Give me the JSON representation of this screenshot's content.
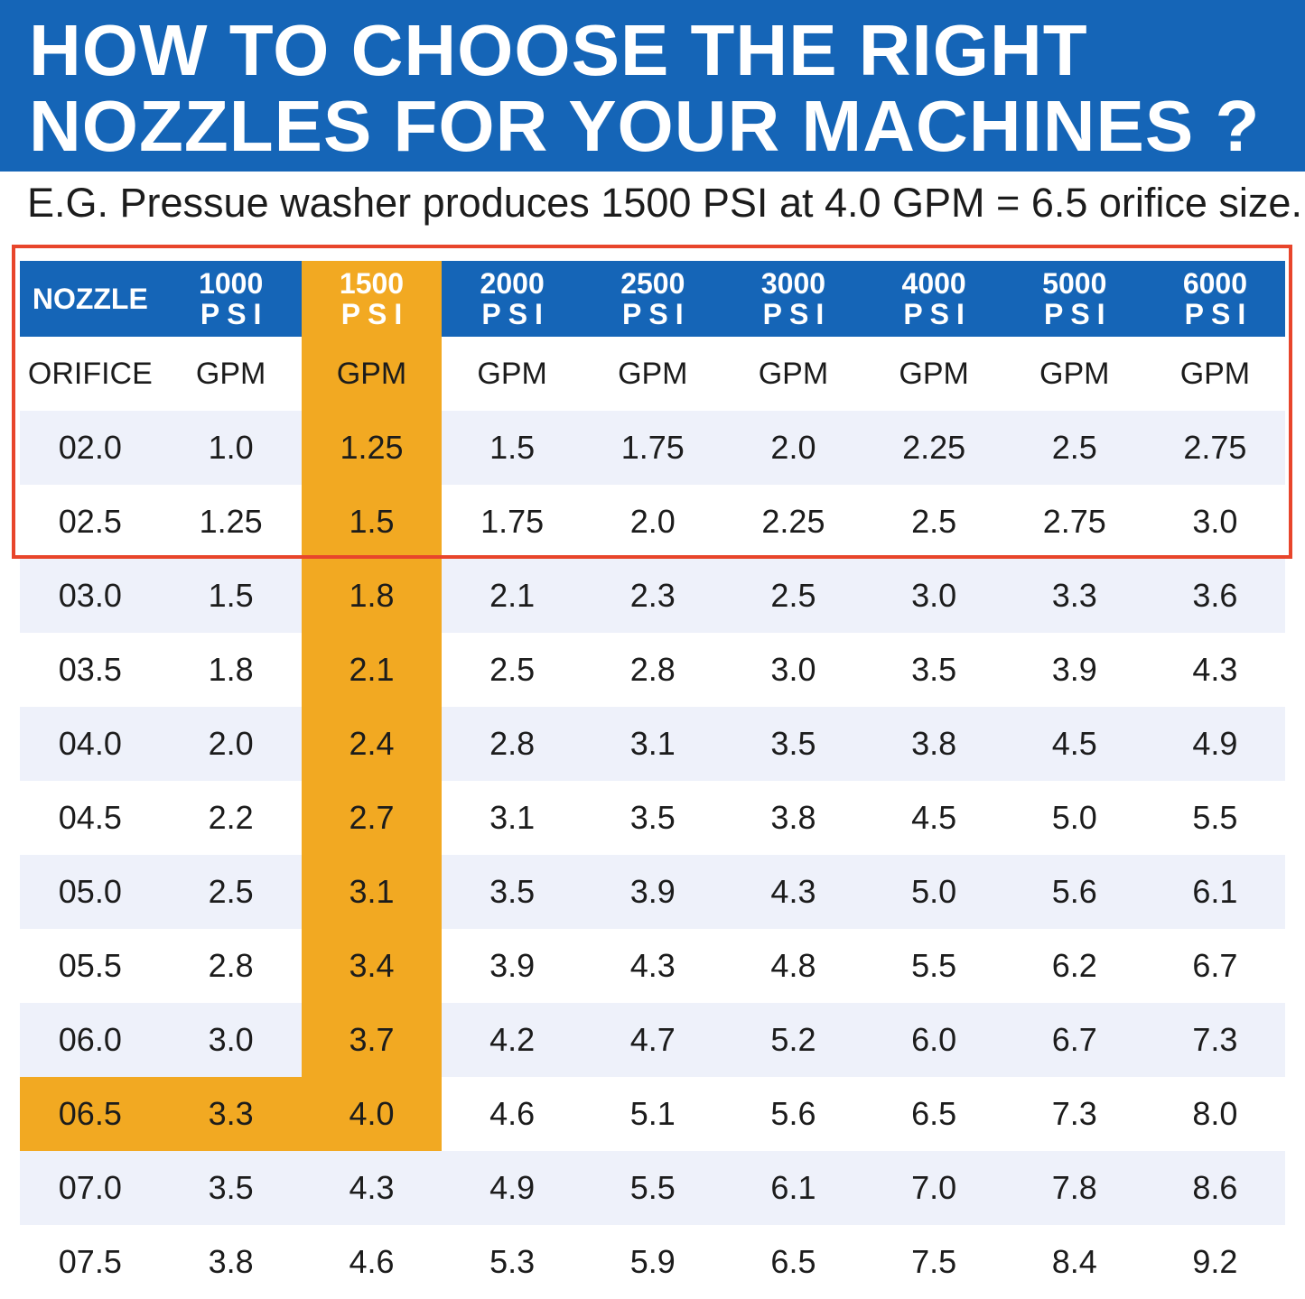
{
  "title": {
    "line1": "HOW TO CHOOSE THE RIGHT",
    "line2": "NOZZLES FOR YOUR MACHINES ?"
  },
  "subtitle": "E.G. Pressue washer produces 1500 PSI at 4.0 GPM = 6.5 orifice size.",
  "colors": {
    "banner": "#1565b7",
    "highlight": "#f2a922",
    "callout_border": "#e8452b",
    "alt_row": "#eef1fa"
  },
  "table": {
    "header_first": "NOZZLE",
    "pressures": [
      {
        "value": "1000",
        "unit": "PSI"
      },
      {
        "value": "1500",
        "unit": "PSI"
      },
      {
        "value": "2000",
        "unit": "PSI"
      },
      {
        "value": "2500",
        "unit": "PSI"
      },
      {
        "value": "3000",
        "unit": "PSI"
      },
      {
        "value": "4000",
        "unit": "PSI"
      },
      {
        "value": "5000",
        "unit": "PSI"
      },
      {
        "value": "6000",
        "unit": "PSI"
      }
    ],
    "units_first": "ORIFICE",
    "unit_label": "GPM",
    "highlight_column": 1,
    "highlight_row": "06.5",
    "rows": [
      [
        "02.0",
        "1.0",
        "1.25",
        "1.5",
        "1.75",
        "2.0",
        "2.25",
        "2.5",
        "2.75"
      ],
      [
        "02.5",
        "1.25",
        "1.5",
        "1.75",
        "2.0",
        "2.25",
        "2.5",
        "2.75",
        "3.0"
      ],
      [
        "03.0",
        "1.5",
        "1.8",
        "2.1",
        "2.3",
        "2.5",
        "3.0",
        "3.3",
        "3.6"
      ],
      [
        "03.5",
        "1.8",
        "2.1",
        "2.5",
        "2.8",
        "3.0",
        "3.5",
        "3.9",
        "4.3"
      ],
      [
        "04.0",
        "2.0",
        "2.4",
        "2.8",
        "3.1",
        "3.5",
        "3.8",
        "4.5",
        "4.9"
      ],
      [
        "04.5",
        "2.2",
        "2.7",
        "3.1",
        "3.5",
        "3.8",
        "4.5",
        "5.0",
        "5.5"
      ],
      [
        "05.0",
        "2.5",
        "3.1",
        "3.5",
        "3.9",
        "4.3",
        "5.0",
        "5.6",
        "6.1"
      ],
      [
        "05.5",
        "2.8",
        "3.4",
        "3.9",
        "4.3",
        "4.8",
        "5.5",
        "6.2",
        "6.7"
      ],
      [
        "06.0",
        "3.0",
        "3.7",
        "4.2",
        "4.7",
        "5.2",
        "6.0",
        "6.7",
        "7.3"
      ],
      [
        "06.5",
        "3.3",
        "4.0",
        "4.6",
        "5.1",
        "5.6",
        "6.5",
        "7.3",
        "8.0"
      ],
      [
        "07.0",
        "3.5",
        "4.3",
        "4.9",
        "5.5",
        "6.1",
        "7.0",
        "7.8",
        "8.6"
      ],
      [
        "07.5",
        "3.8",
        "4.6",
        "5.3",
        "5.9",
        "6.5",
        "7.5",
        "8.4",
        "9.2"
      ]
    ]
  }
}
